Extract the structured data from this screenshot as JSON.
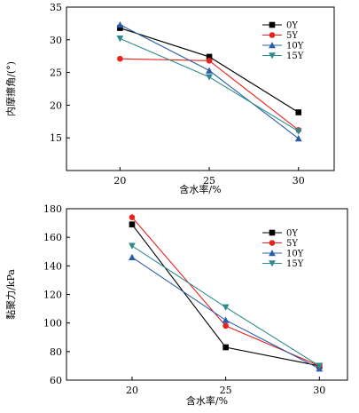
{
  "chart_data": [
    {
      "type": "line",
      "title": "",
      "xlabel": "含水率/%",
      "ylabel": "内摩擦角/(°)",
      "x": [
        20,
        25,
        30
      ],
      "xlim": [
        17,
        32
      ],
      "ylim": [
        10,
        35
      ],
      "yticks": [
        15,
        20,
        25,
        30,
        35
      ],
      "grid": false,
      "legend_position": "top-right",
      "series": [
        {
          "name": "0Y",
          "values": [
            31.8,
            27.4,
            18.9
          ],
          "color": "#000000",
          "marker": "square"
        },
        {
          "name": "5Y",
          "values": [
            27.1,
            26.8,
            16.2
          ],
          "color": "#e8231c",
          "marker": "circle"
        },
        {
          "name": "10Y",
          "values": [
            32.3,
            25.3,
            14.9
          ],
          "color": "#2a5caa",
          "marker": "triangle-up"
        },
        {
          "name": "15Y",
          "values": [
            30.2,
            24.3,
            16.0
          ],
          "color": "#2e8b8b",
          "marker": "triangle-down"
        }
      ]
    },
    {
      "type": "line",
      "title": "",
      "xlabel": "含水率/%",
      "ylabel": "黏聚力/kPa",
      "x": [
        20,
        25,
        30
      ],
      "xlim": [
        16.5,
        31.5
      ],
      "ylim": [
        60,
        180
      ],
      "yticks": [
        60,
        80,
        100,
        120,
        140,
        160,
        180
      ],
      "grid": false,
      "legend_position": "top-right",
      "series": [
        {
          "name": "0Y",
          "values": [
            169,
            83,
            70
          ],
          "color": "#000000",
          "marker": "square"
        },
        {
          "name": "5Y",
          "values": [
            174,
            98,
            70
          ],
          "color": "#e8231c",
          "marker": "circle"
        },
        {
          "name": "10Y",
          "values": [
            146,
            102,
            68
          ],
          "color": "#2a5caa",
          "marker": "triangle-up"
        },
        {
          "name": "15Y",
          "values": [
            154,
            111,
            70
          ],
          "color": "#2e8b8b",
          "marker": "triangle-down"
        }
      ]
    }
  ]
}
